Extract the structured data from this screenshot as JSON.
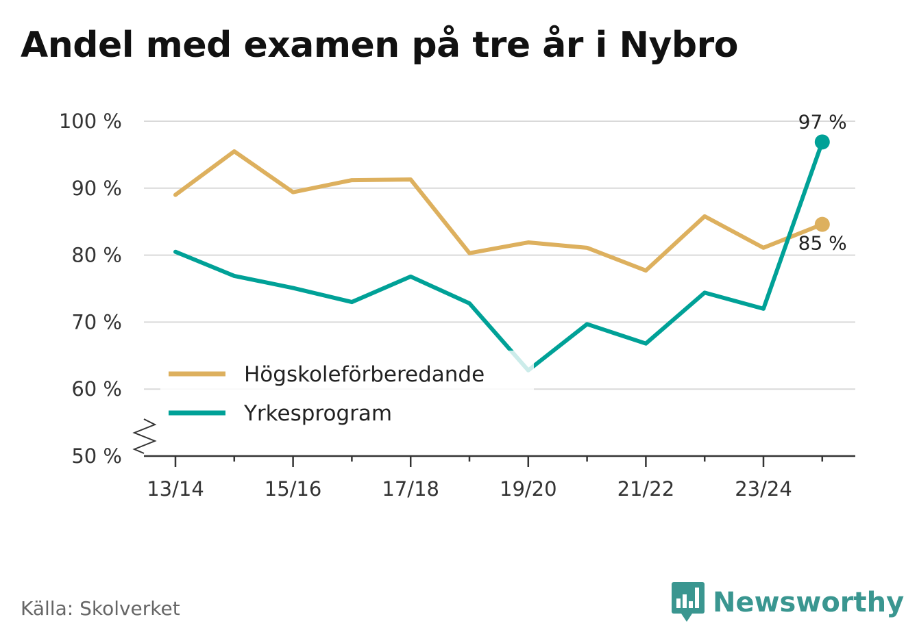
{
  "chart_data": {
    "type": "line",
    "title": "Andel med examen på tre år i Nybro",
    "xlabel": "",
    "ylabel": "",
    "x": [
      "13/14",
      "14/15",
      "15/16",
      "16/17",
      "17/18",
      "18/19",
      "19/20",
      "20/21",
      "21/22",
      "22/23",
      "23/24",
      "24/25"
    ],
    "x_tick_labels": [
      "13/14",
      "15/16",
      "17/18",
      "19/20",
      "21/22",
      "23/24"
    ],
    "y_tick_labels": [
      "50 %",
      "60 %",
      "70 %",
      "80 %",
      "90 %",
      "100 %"
    ],
    "ylim": [
      50,
      100
    ],
    "y_axis_break": true,
    "grid": true,
    "legend_position": "bottom-left",
    "series": [
      {
        "name": "Högskoleförberedande",
        "color": "#ddb05e",
        "values": [
          89,
          95.5,
          89.4,
          91.2,
          91.3,
          80.3,
          81.9,
          81.1,
          77.7,
          85.8,
          81.1,
          84.6
        ],
        "end_label": "85 %"
      },
      {
        "name": "Yrkesprogram",
        "color": "#00a197",
        "values": [
          80.5,
          76.9,
          75.1,
          73,
          76.8,
          72.8,
          62.8,
          69.7,
          66.8,
          74.4,
          72,
          96.9
        ],
        "end_label": "97 %"
      }
    ]
  },
  "source_text": "Källa: Skolverket",
  "brand": {
    "name": "Newsworthy",
    "icon": "bar-chart-speech-icon",
    "color": "#3a9690"
  }
}
